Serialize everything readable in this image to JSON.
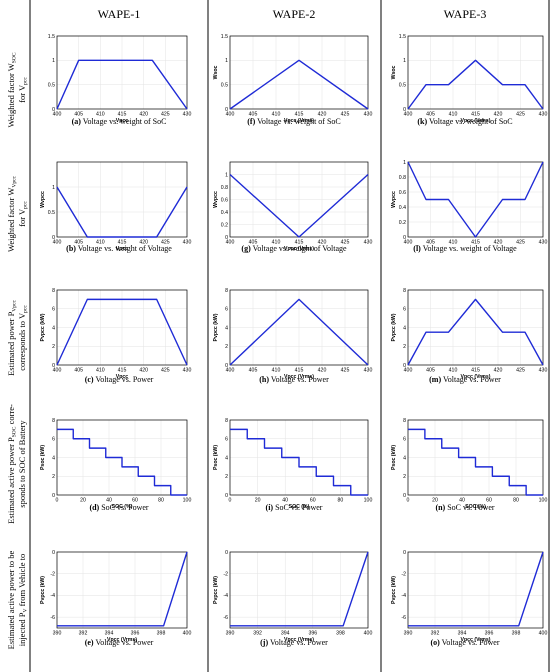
{
  "colors": {
    "trace": "#1f2bd6",
    "frame": "#000000"
  },
  "columns": [
    "WAPE-1",
    "WAPE-2",
    "WAPE-3"
  ],
  "rows": [
    {
      "lines": [
        "Weighted factor W",
        "SOC",
        " ",
        "for V",
        "pcc",
        ""
      ],
      "rich": [
        [
          "Weighted factor W",
          "SOC"
        ],
        [
          "for V",
          "pcc"
        ]
      ]
    },
    {
      "rich": [
        [
          "Weighted factor W",
          "Vpcc"
        ],
        [
          "for V",
          "pcc"
        ]
      ]
    },
    {
      "rich": [
        [
          "Estimated power P",
          "Vpcc"
        ],
        [
          "corresponds to V",
          "pcc"
        ]
      ]
    },
    {
      "rich": [
        [
          "Estimated active power P",
          "SOC",
          " corre-"
        ],
        [
          "sponds to SOC of Battery"
        ]
      ]
    },
    {
      "rich": [
        [
          "Estimated active power to be"
        ],
        [
          "injected P",
          "V",
          " from Vehicle to"
        ]
      ]
    }
  ],
  "captions": [
    [
      {
        "letter": "(a)",
        "text": " Voltage vs. weight of SoC"
      },
      {
        "letter": "(f)",
        "text": " Voltage vs. weight of SoC"
      },
      {
        "letter": "(k)",
        "text": " Voltage vs. weight of SoC"
      }
    ],
    [
      {
        "letter": "(b)",
        "text": " Voltage vs. weight of Voltage"
      },
      {
        "letter": "(g)",
        "text": " Voltage vs. weight of Voltage"
      },
      {
        "letter": "(l)",
        "text": " Voltage vs. weight of Voltage"
      }
    ],
    [
      {
        "letter": "(c)",
        "text": " Voltage vs. Power"
      },
      {
        "letter": "(h)",
        "text": " Voltage vs. Power"
      },
      {
        "letter": "(m)",
        "text": " Voltage vs. Power"
      }
    ],
    [
      {
        "letter": "(d)",
        "text": " SoC vs. Power"
      },
      {
        "letter": "(i)",
        "text": " SoC vs. Power"
      },
      {
        "letter": "(n)",
        "text": " SoC vs. Power"
      }
    ],
    [
      {
        "letter": "(e)",
        "text": " Voltage vs. Power"
      },
      {
        "letter": "(j)",
        "text": " Voltage vs. Power"
      },
      {
        "letter": "(o)",
        "text": " Voltage vs. Power"
      }
    ]
  ],
  "chart_data": [
    {
      "id": "a",
      "type": "line",
      "xlabel": "Vpcc",
      "ylabel": "",
      "xlim": [
        400,
        430
      ],
      "ylim": [
        0,
        1.5
      ],
      "xticks": [
        "400",
        "405",
        "410",
        "415",
        "420",
        "425",
        "430"
      ],
      "yticks": [
        "0",
        "0.5",
        "1",
        "1.5"
      ],
      "x": [
        400,
        405,
        422,
        430
      ],
      "y": [
        0,
        1,
        1,
        0
      ]
    },
    {
      "id": "f",
      "type": "line",
      "xlabel": "Vpcc (Vrms)",
      "ylabel": "Wsoc",
      "xlim": [
        400,
        430
      ],
      "ylim": [
        0,
        1.5
      ],
      "xticks": [
        "400",
        "405",
        "410",
        "415",
        "420",
        "425",
        "430"
      ],
      "yticks": [
        "0",
        "0.5",
        "1",
        "1.5"
      ],
      "x": [
        400,
        415,
        430
      ],
      "y": [
        0,
        1,
        0
      ]
    },
    {
      "id": "k",
      "type": "line",
      "xlabel": "Vpcc (Vrms)",
      "ylabel": "Wsoc",
      "xlim": [
        400,
        430
      ],
      "ylim": [
        0,
        1.5
      ],
      "xticks": [
        "400",
        "405",
        "410",
        "415",
        "420",
        "425",
        "430"
      ],
      "yticks": [
        "0",
        "0.5",
        "1",
        "1.5"
      ],
      "x": [
        400,
        404,
        409,
        415,
        421,
        426,
        430
      ],
      "y": [
        0,
        0.5,
        0.5,
        1,
        0.5,
        0.5,
        0
      ]
    },
    {
      "id": "b",
      "type": "line",
      "xlabel": "Vpcc",
      "ylabel": "Wvpcc",
      "xlim": [
        400,
        430
      ],
      "ylim": [
        0,
        1.5
      ],
      "xticks": [
        "400",
        "405",
        "410",
        "415",
        "420",
        "425",
        "430"
      ],
      "yticks": [
        "0",
        "0.5",
        "1"
      ],
      "x": [
        400,
        407,
        423,
        430
      ],
      "y": [
        1,
        0,
        0,
        1
      ]
    },
    {
      "id": "g",
      "type": "line",
      "xlabel": "Vpcc (Vrms)",
      "ylabel": "Wvpcc",
      "xlim": [
        400,
        430
      ],
      "ylim": [
        0,
        1.2
      ],
      "xticks": [
        "400",
        "405",
        "410",
        "415",
        "420",
        "425",
        "430"
      ],
      "yticks": [
        "0",
        "0.2",
        "0.4",
        "0.6",
        "0.8",
        "1"
      ],
      "x": [
        400,
        415,
        430
      ],
      "y": [
        1,
        0,
        1
      ]
    },
    {
      "id": "l",
      "type": "line",
      "xlabel": "",
      "ylabel": "Wvpcc",
      "xlim": [
        400,
        430
      ],
      "ylim": [
        0,
        1
      ],
      "xticks": [
        "400",
        "405",
        "410",
        "415",
        "420",
        "425",
        "430"
      ],
      "yticks": [
        "0",
        "0.2",
        "0.4",
        "0.6",
        "0.8",
        "1"
      ],
      "x": [
        400,
        404,
        409,
        415,
        421,
        426,
        430
      ],
      "y": [
        1,
        0.5,
        0.5,
        0,
        0.5,
        0.5,
        1
      ]
    },
    {
      "id": "c",
      "type": "line",
      "xlabel": "Vpcc",
      "ylabel": "Pvpcc (kW)",
      "xlim": [
        400,
        430
      ],
      "ylim": [
        0,
        8
      ],
      "xticks": [
        "400",
        "405",
        "410",
        "415",
        "420",
        "425",
        "430"
      ],
      "yticks": [
        "0",
        "2",
        "4",
        "6",
        "8"
      ],
      "x": [
        400,
        407,
        423,
        430
      ],
      "y": [
        0,
        7,
        7,
        0
      ]
    },
    {
      "id": "h",
      "type": "line",
      "xlabel": "Vpcc (Vrms)",
      "ylabel": "Pvpcc (kW)",
      "xlim": [
        400,
        430
      ],
      "ylim": [
        0,
        8
      ],
      "xticks": [
        "400",
        "405",
        "410",
        "415",
        "420",
        "425",
        "430"
      ],
      "yticks": [
        "0",
        "2",
        "4",
        "6",
        "8"
      ],
      "x": [
        400,
        415,
        430
      ],
      "y": [
        0,
        7,
        0
      ]
    },
    {
      "id": "m",
      "type": "line",
      "xlabel": "Vpcc (Vrms)",
      "ylabel": "Pvpcc (kW)",
      "xlim": [
        400,
        430
      ],
      "ylim": [
        0,
        8
      ],
      "xticks": [
        "400",
        "405",
        "410",
        "415",
        "420",
        "425",
        "430"
      ],
      "yticks": [
        "0",
        "2",
        "4",
        "6",
        "8"
      ],
      "x": [
        400,
        404,
        409,
        415,
        421,
        426,
        430
      ],
      "y": [
        0,
        3.5,
        3.5,
        7,
        3.5,
        3.5,
        0
      ]
    },
    {
      "id": "d",
      "type": "line",
      "xlabel": "SOC (%)",
      "ylabel": "Psoc (kW)",
      "xlim": [
        0,
        100
      ],
      "ylim": [
        0,
        8
      ],
      "xticks": [
        "0",
        "20",
        "40",
        "60",
        "80",
        "100"
      ],
      "yticks": [
        "0",
        "2",
        "4",
        "6",
        "8"
      ],
      "x": [
        0,
        12.5,
        12.5,
        25,
        25,
        37.5,
        37.5,
        50,
        50,
        62.5,
        62.5,
        75,
        75,
        87.5,
        87.5,
        100,
        100
      ],
      "y": [
        7,
        7,
        6,
        6,
        5,
        5,
        4,
        4,
        3,
        3,
        2,
        2,
        1,
        1,
        0,
        0,
        0
      ]
    },
    {
      "id": "i",
      "type": "line",
      "xlabel": "SOC (%)",
      "ylabel": "Psoc (kW)",
      "xlim": [
        0,
        100
      ],
      "ylim": [
        0,
        8
      ],
      "xticks": [
        "0",
        "20",
        "40",
        "60",
        "80",
        "100"
      ],
      "yticks": [
        "0",
        "2",
        "4",
        "6",
        "8"
      ],
      "x": [
        0,
        12.5,
        12.5,
        25,
        25,
        37.5,
        37.5,
        50,
        50,
        62.5,
        62.5,
        75,
        75,
        87.5,
        87.5,
        100,
        100
      ],
      "y": [
        7,
        7,
        6,
        6,
        5,
        5,
        4,
        4,
        3,
        3,
        2,
        2,
        1,
        1,
        0,
        0,
        0
      ]
    },
    {
      "id": "n",
      "type": "line",
      "xlabel": "SOC (%)",
      "ylabel": "Psoc (kW)",
      "xlim": [
        0,
        100
      ],
      "ylim": [
        0,
        8
      ],
      "xticks": [
        "0",
        "20",
        "40",
        "60",
        "80",
        "100"
      ],
      "yticks": [
        "0",
        "2",
        "4",
        "6",
        "8"
      ],
      "x": [
        0,
        12.5,
        12.5,
        25,
        25,
        37.5,
        37.5,
        50,
        50,
        62.5,
        62.5,
        75,
        75,
        87.5,
        87.5,
        100,
        100
      ],
      "y": [
        7,
        7,
        6,
        6,
        5,
        5,
        4,
        4,
        3,
        3,
        2,
        2,
        1,
        1,
        0,
        0,
        0
      ]
    },
    {
      "id": "e",
      "type": "line",
      "xlabel": "Vpcc (Vrms)",
      "ylabel": "Pvpcc (kW)",
      "xlim": [
        390,
        400
      ],
      "ylim": [
        -7,
        0
      ],
      "xticks": [
        "390",
        "392",
        "394",
        "396",
        "398",
        "400"
      ],
      "yticks": [
        "-6",
        "-4",
        "-2",
        "0"
      ],
      "x": [
        390,
        398.2,
        400
      ],
      "y": [
        -6.8,
        -6.8,
        0
      ]
    },
    {
      "id": "j",
      "type": "line",
      "xlabel": "Vpcc (Vrms)",
      "ylabel": "Pvpcc (kW)",
      "xlim": [
        390,
        400
      ],
      "ylim": [
        -7,
        0
      ],
      "xticks": [
        "390",
        "392",
        "394",
        "396",
        "398",
        "400"
      ],
      "yticks": [
        "-6",
        "-4",
        "-2",
        "0"
      ],
      "x": [
        390,
        398.2,
        400
      ],
      "y": [
        -6.8,
        -6.8,
        0
      ]
    },
    {
      "id": "o",
      "type": "line",
      "xlabel": "Vpcc (Vrms)",
      "ylabel": "Pvpcc (kW)",
      "xlim": [
        390,
        400
      ],
      "ylim": [
        -7,
        0
      ],
      "xticks": [
        "390",
        "392",
        "394",
        "396",
        "398",
        "400"
      ],
      "yticks": [
        "-6",
        "-4",
        "-2",
        "0"
      ],
      "x": [
        390,
        398.2,
        400
      ],
      "y": [
        -6.8,
        -6.8,
        0
      ]
    }
  ]
}
